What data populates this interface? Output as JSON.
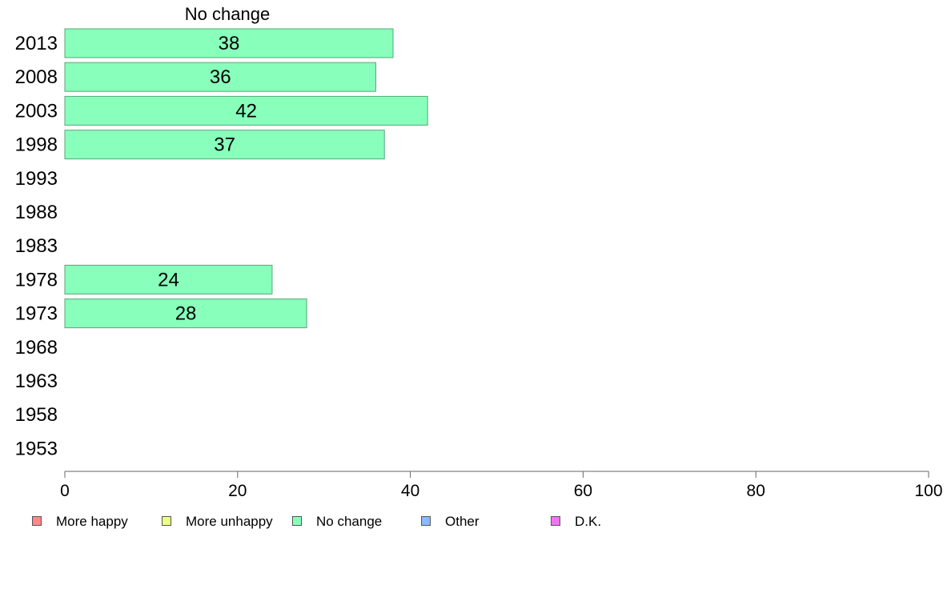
{
  "chart_data": {
    "type": "bar",
    "orientation": "horizontal",
    "title": "No change",
    "categories": [
      "2013",
      "2008",
      "2003",
      "1998",
      "1993",
      "1988",
      "1983",
      "1978",
      "1973",
      "1968",
      "1963",
      "1958",
      "1953"
    ],
    "series": [
      {
        "name": "No change",
        "color": "#88ffbb",
        "values": [
          38,
          36,
          42,
          37,
          null,
          null,
          null,
          24,
          28,
          null,
          null,
          null,
          null
        ]
      }
    ],
    "xlim": [
      0,
      100
    ],
    "xticks": [
      0,
      20,
      40,
      60,
      80,
      100
    ],
    "grid": false,
    "legend_placement": "bottom",
    "legend": [
      {
        "label": "More happy",
        "color": "#ff8888"
      },
      {
        "label": "More unhappy",
        "color": "#eeff88"
      },
      {
        "label": "No change",
        "color": "#88ffbb"
      },
      {
        "label": "Other",
        "color": "#88bbff"
      },
      {
        "label": "D.K.",
        "color": "#ee77ee"
      }
    ]
  }
}
